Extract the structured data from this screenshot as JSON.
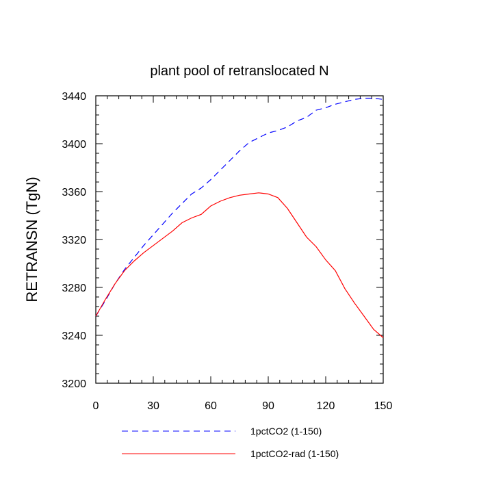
{
  "chart_data": {
    "type": "line",
    "title": "plant pool of retranslocated N",
    "ylabel": "RETRANSN  (TgN)",
    "xlabel": "",
    "xlim": [
      0,
      150
    ],
    "ylim": [
      3200,
      3440
    ],
    "x_ticks": [
      0,
      30,
      60,
      90,
      120,
      150
    ],
    "y_ticks": [
      3200,
      3240,
      3280,
      3320,
      3360,
      3400,
      3440
    ],
    "grid": false,
    "legend_position": "bottom",
    "series": [
      {
        "name": "1pctCO2 (1-150)",
        "color": "#0000ff",
        "dash": "dashed",
        "x": [
          0,
          5,
          10,
          15,
          20,
          25,
          30,
          35,
          40,
          45,
          50,
          55,
          60,
          65,
          70,
          75,
          80,
          85,
          90,
          95,
          100,
          105,
          110,
          115,
          120,
          125,
          130,
          135,
          140,
          145,
          150
        ],
        "y": [
          3256,
          3269,
          3283,
          3295,
          3305,
          3315,
          3324,
          3333,
          3342,
          3350,
          3358,
          3363,
          3370,
          3378,
          3386,
          3394,
          3401,
          3405,
          3409,
          3411,
          3414,
          3419,
          3422,
          3428,
          3430,
          3433,
          3435,
          3437,
          3438,
          3438,
          3437
        ]
      },
      {
        "name": "1pctCO2-rad (1-150)",
        "color": "#ff0000",
        "dash": "solid",
        "x": [
          0,
          5,
          10,
          15,
          20,
          25,
          30,
          35,
          40,
          45,
          50,
          55,
          60,
          65,
          70,
          75,
          80,
          85,
          90,
          95,
          100,
          105,
          110,
          115,
          120,
          125,
          130,
          135,
          140,
          145,
          150
        ],
        "y": [
          3256,
          3270,
          3283,
          3294,
          3302,
          3309,
          3315,
          3321,
          3327,
          3334,
          3338,
          3341,
          3348,
          3352,
          3355,
          3357,
          3358,
          3359,
          3358,
          3355,
          3346,
          3334,
          3322,
          3314,
          3303,
          3294,
          3279,
          3267,
          3256,
          3245,
          3238
        ]
      }
    ]
  }
}
